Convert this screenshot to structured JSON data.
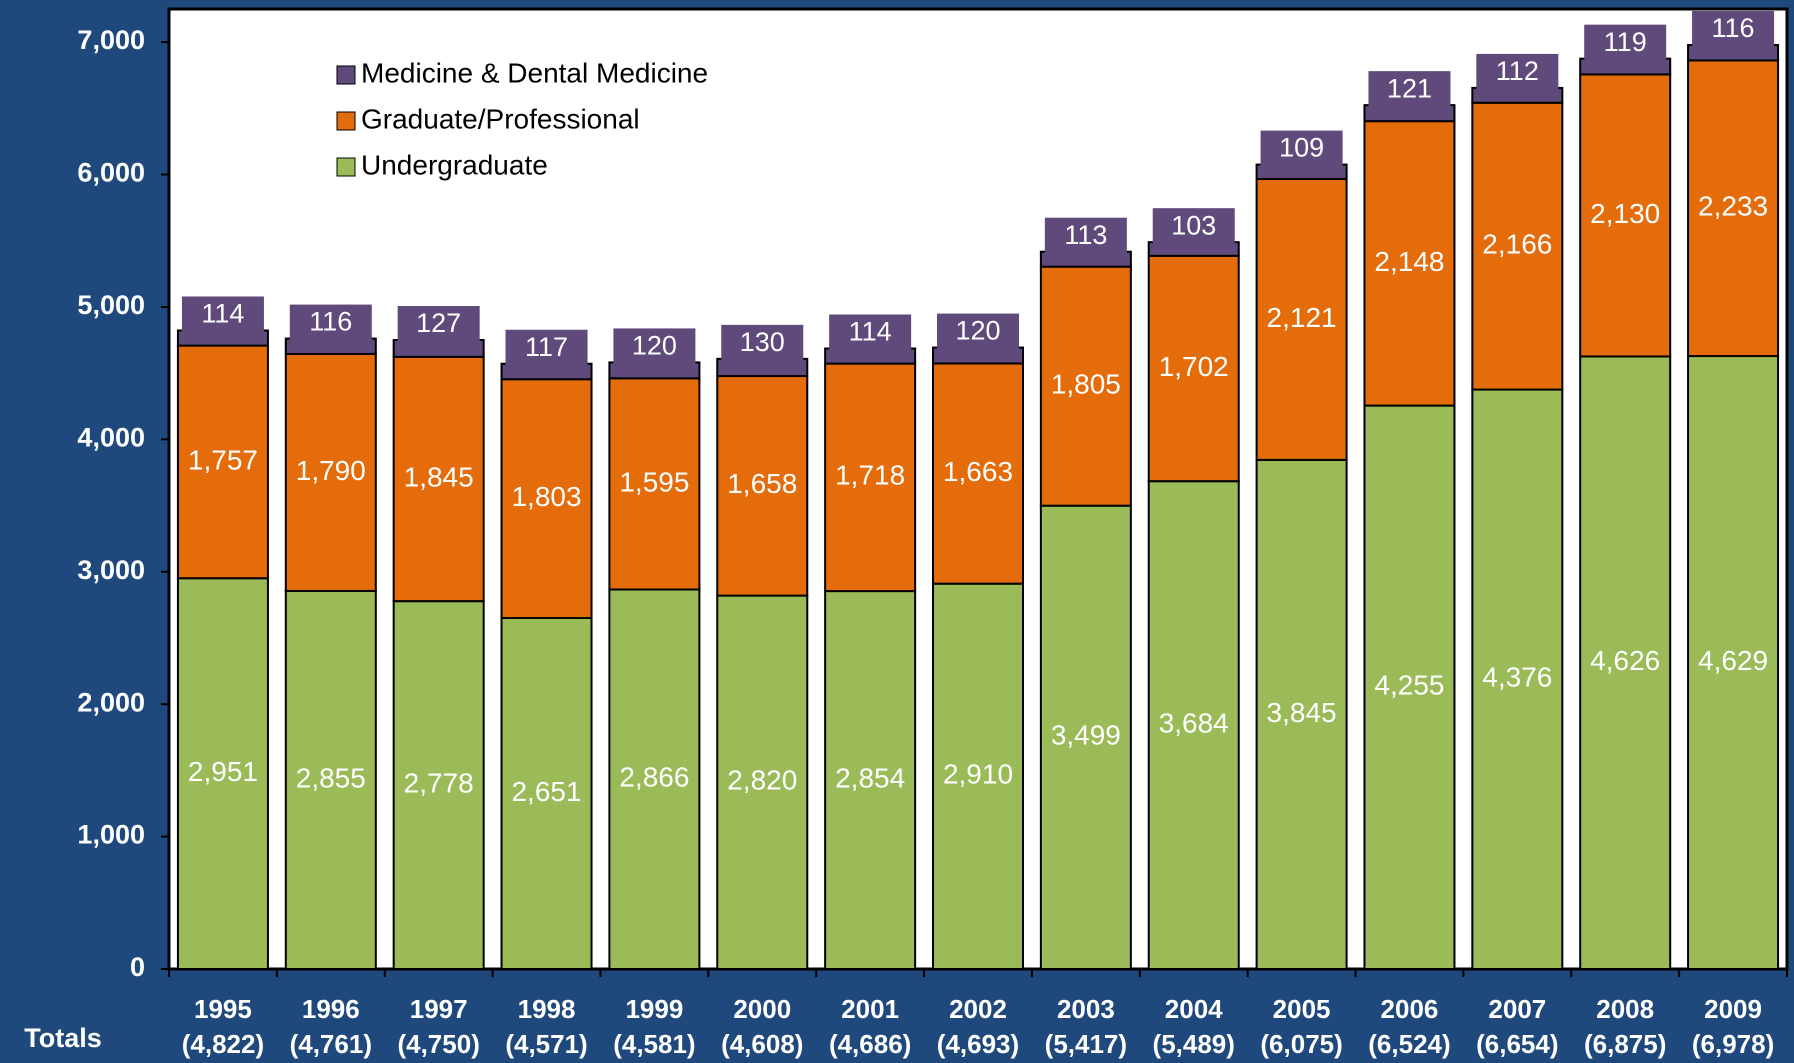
{
  "chart_data": {
    "type": "stacked-bar",
    "categories": [
      "1995",
      "1996",
      "1997",
      "1998",
      "1999",
      "2000",
      "2001",
      "2002",
      "2003",
      "2004",
      "2005",
      "2006",
      "2007",
      "2008",
      "2009"
    ],
    "series": [
      {
        "name": "Undergraduate",
        "color": "#9bbb59",
        "values": [
          2951,
          2855,
          2778,
          2651,
          2866,
          2820,
          2854,
          2910,
          3499,
          3684,
          3845,
          4255,
          4376,
          4626,
          4629
        ],
        "value_labels": [
          "2,951",
          "2,855",
          "2,778",
          "2,651",
          "2,866",
          "2,820",
          "2,854",
          "2,910",
          "3,499",
          "3,684",
          "3,845",
          "4,255",
          "4,376",
          "4,626",
          "4,629"
        ]
      },
      {
        "name": "Graduate/Professional",
        "color": "#e46c0a",
        "values": [
          1757,
          1790,
          1845,
          1803,
          1595,
          1658,
          1718,
          1663,
          1805,
          1702,
          2121,
          2148,
          2166,
          2130,
          2233
        ],
        "value_labels": [
          "1,757",
          "1,790",
          "1,845",
          "1,803",
          "1,595",
          "1,658",
          "1,718",
          "1,663",
          "1,805",
          "1,702",
          "2,121",
          "2,148",
          "2,166",
          "2,130",
          "2,233"
        ]
      },
      {
        "name": "Medicine & Dental Medicine",
        "color": "#604a7b",
        "values": [
          114,
          116,
          127,
          117,
          120,
          130,
          114,
          120,
          113,
          103,
          109,
          121,
          112,
          119,
          116
        ]
      }
    ],
    "totals": {
      "label": "Totals",
      "values": [
        4822,
        4761,
        4750,
        4571,
        4581,
        4608,
        4686,
        4693,
        5417,
        5489,
        6075,
        6524,
        6654,
        6875,
        6978
      ],
      "value_labels": [
        "(4,822)",
        "(4,761)",
        "(4,750)",
        "(4,571)",
        "(4,581)",
        "(4,608)",
        "(4,686)",
        "(4,693)",
        "(5,417)",
        "(5,489)",
        "(6,075)",
        "(6,524)",
        "(6,654)",
        "(6,875)",
        "(6,978)"
      ]
    },
    "ylim": [
      0,
      7250
    ],
    "yticks": [
      0,
      {
        "value": 1000,
        "label": "1,000"
      },
      {
        "value": 2000,
        "label": "2,000"
      },
      {
        "value": 3000,
        "label": "3,000"
      },
      {
        "value": 4000,
        "label": "4,000"
      },
      {
        "value": 5000,
        "label": "5,000"
      },
      {
        "value": 6000,
        "label": "6,000"
      },
      {
        "value": 7000,
        "label": "7,000"
      }
    ],
    "legend": "upper left",
    "background": "#1f497d"
  }
}
